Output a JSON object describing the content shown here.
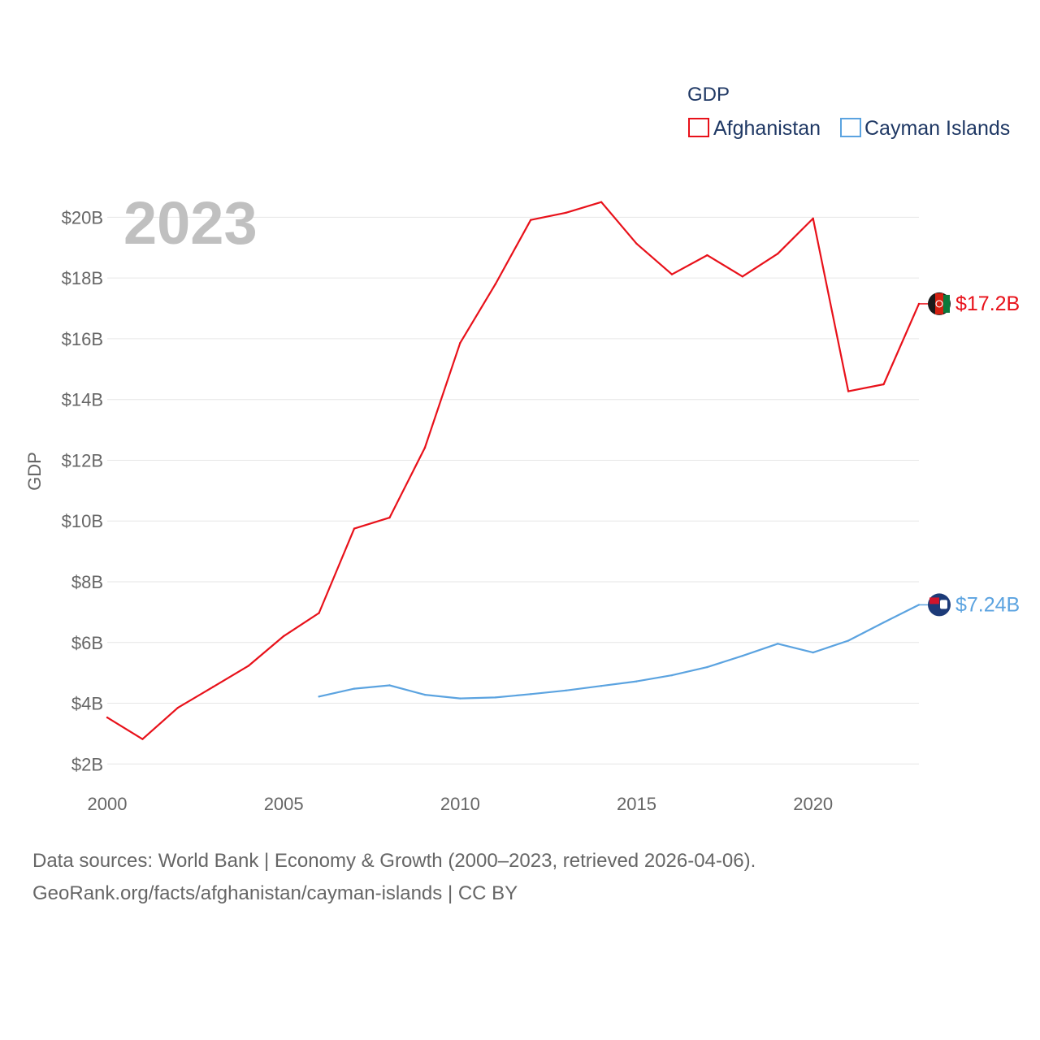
{
  "chart_data": {
    "type": "line",
    "ylabel": "GDP",
    "xlabel": "",
    "legend_title": "GDP",
    "year_label": "2023",
    "xlim": [
      2000,
      2023
    ],
    "ylim": [
      1.5,
      21
    ],
    "x_ticks": [
      2000,
      2005,
      2010,
      2015,
      2020
    ],
    "x_tick_labels": [
      "2000",
      "2005",
      "2010",
      "2015",
      "2020"
    ],
    "y_ticks": [
      2,
      4,
      6,
      8,
      10,
      12,
      14,
      16,
      18,
      20
    ],
    "y_tick_labels": [
      "$2B",
      "$4B",
      "$6B",
      "$8B",
      "$10B",
      "$12B",
      "$14B",
      "$16B",
      "$18B",
      "$20B"
    ],
    "series": [
      {
        "name": "Afghanistan",
        "color": "#e8111a",
        "end_label": "$17.2B",
        "x": [
          2000,
          2001,
          2002,
          2003,
          2004,
          2005,
          2006,
          2007,
          2008,
          2009,
          2010,
          2011,
          2012,
          2013,
          2014,
          2015,
          2016,
          2017,
          2018,
          2019,
          2020,
          2021,
          2022,
          2023
        ],
        "values": [
          3.53,
          2.82,
          3.85,
          4.54,
          5.23,
          6.21,
          6.97,
          9.75,
          10.11,
          12.41,
          15.86,
          17.8,
          19.91,
          20.15,
          20.5,
          19.13,
          18.12,
          18.75,
          18.05,
          18.8,
          19.96,
          14.27,
          14.5,
          17.15
        ]
      },
      {
        "name": "Cayman Islands",
        "color": "#5ba3e0",
        "end_label": "$7.24B",
        "x": [
          2006,
          2007,
          2008,
          2009,
          2010,
          2011,
          2012,
          2013,
          2014,
          2015,
          2016,
          2017,
          2018,
          2019,
          2020,
          2021,
          2022,
          2023
        ],
        "values": [
          4.22,
          4.48,
          4.59,
          4.28,
          4.16,
          4.19,
          4.3,
          4.42,
          4.57,
          4.72,
          4.92,
          5.19,
          5.56,
          5.96,
          5.67,
          6.06,
          6.66,
          7.24
        ]
      }
    ]
  },
  "footer": {
    "line1": "Data sources: World Bank | Economy & Growth (2000–2023, retrieved 2026-04-06).",
    "line2": "GeoRank.org/facts/afghanistan/cayman-islands | CC BY"
  }
}
